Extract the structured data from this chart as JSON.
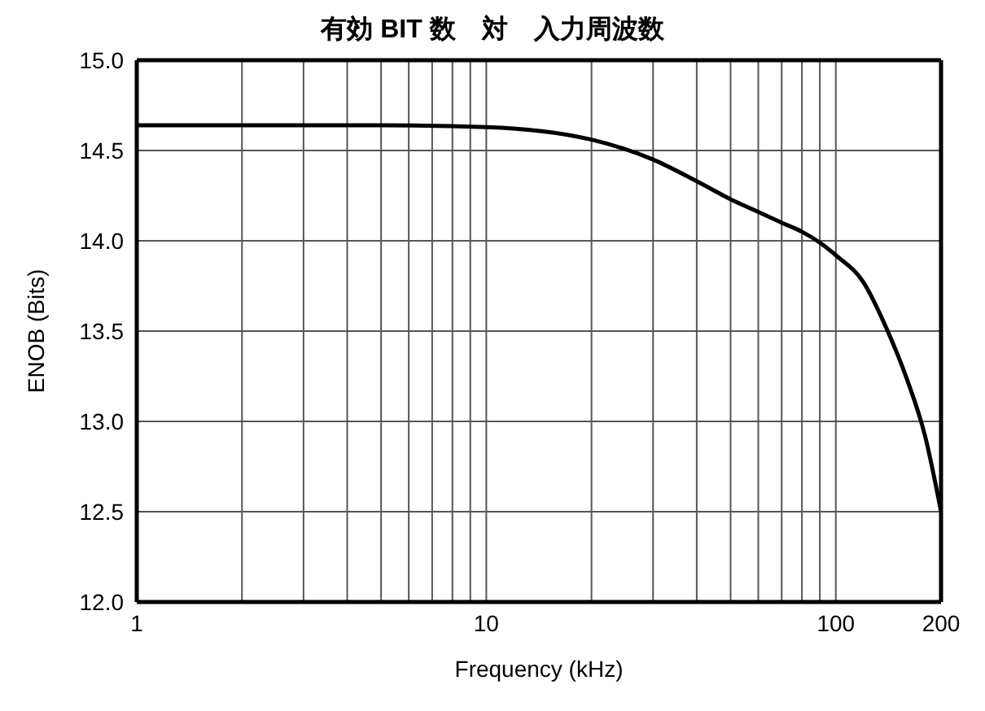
{
  "chart_data": {
    "type": "line",
    "title": "有効 BIT 数　対　入力周波数",
    "xlabel": "Frequency (kHz)",
    "ylabel": "ENOB (Bits)",
    "log": "x",
    "grid": true,
    "marker": "none",
    "line_style": "solid",
    "x": [
      1,
      5,
      10,
      20,
      30,
      40,
      50,
      60,
      70,
      80,
      90,
      100,
      120,
      140,
      160,
      180,
      200
    ],
    "series": [
      {
        "color": "#000000",
        "values": [
          14.64,
          14.64,
          14.63,
          14.56,
          14.45,
          14.33,
          14.23,
          14.16,
          14.1,
          14.05,
          13.99,
          13.92,
          13.77,
          13.51,
          13.23,
          12.92,
          12.5
        ]
      }
    ],
    "xlim": [
      1,
      200
    ],
    "xticks": [
      1,
      {
        "value": 2,
        "label": null
      },
      {
        "value": 3,
        "label": null
      },
      {
        "value": 4,
        "label": null
      },
      {
        "value": 5,
        "label": null
      },
      {
        "value": 6,
        "label": null
      },
      {
        "value": 7,
        "label": null
      },
      {
        "value": 8,
        "label": null
      },
      {
        "value": 9,
        "label": null
      },
      10,
      {
        "value": 20,
        "label": null
      },
      {
        "value": 30,
        "label": null
      },
      {
        "value": 40,
        "label": null
      },
      {
        "value": 50,
        "label": null
      },
      {
        "value": 60,
        "label": null
      },
      {
        "value": 70,
        "label": null
      },
      {
        "value": 80,
        "label": null
      },
      {
        "value": 90,
        "label": null
      },
      100,
      200
    ],
    "ylim": [
      12,
      15
    ],
    "yticks": [
      {
        "value": 12,
        "label": "12.0"
      },
      {
        "value": 12.5,
        "label": "12.5"
      },
      {
        "value": 13,
        "label": "13.0"
      },
      {
        "value": 13.5,
        "label": "13.5"
      },
      {
        "value": 14,
        "label": "14.0"
      },
      {
        "value": 14.5,
        "label": "14.5"
      },
      {
        "value": 15,
        "label": "15.0"
      }
    ]
  }
}
